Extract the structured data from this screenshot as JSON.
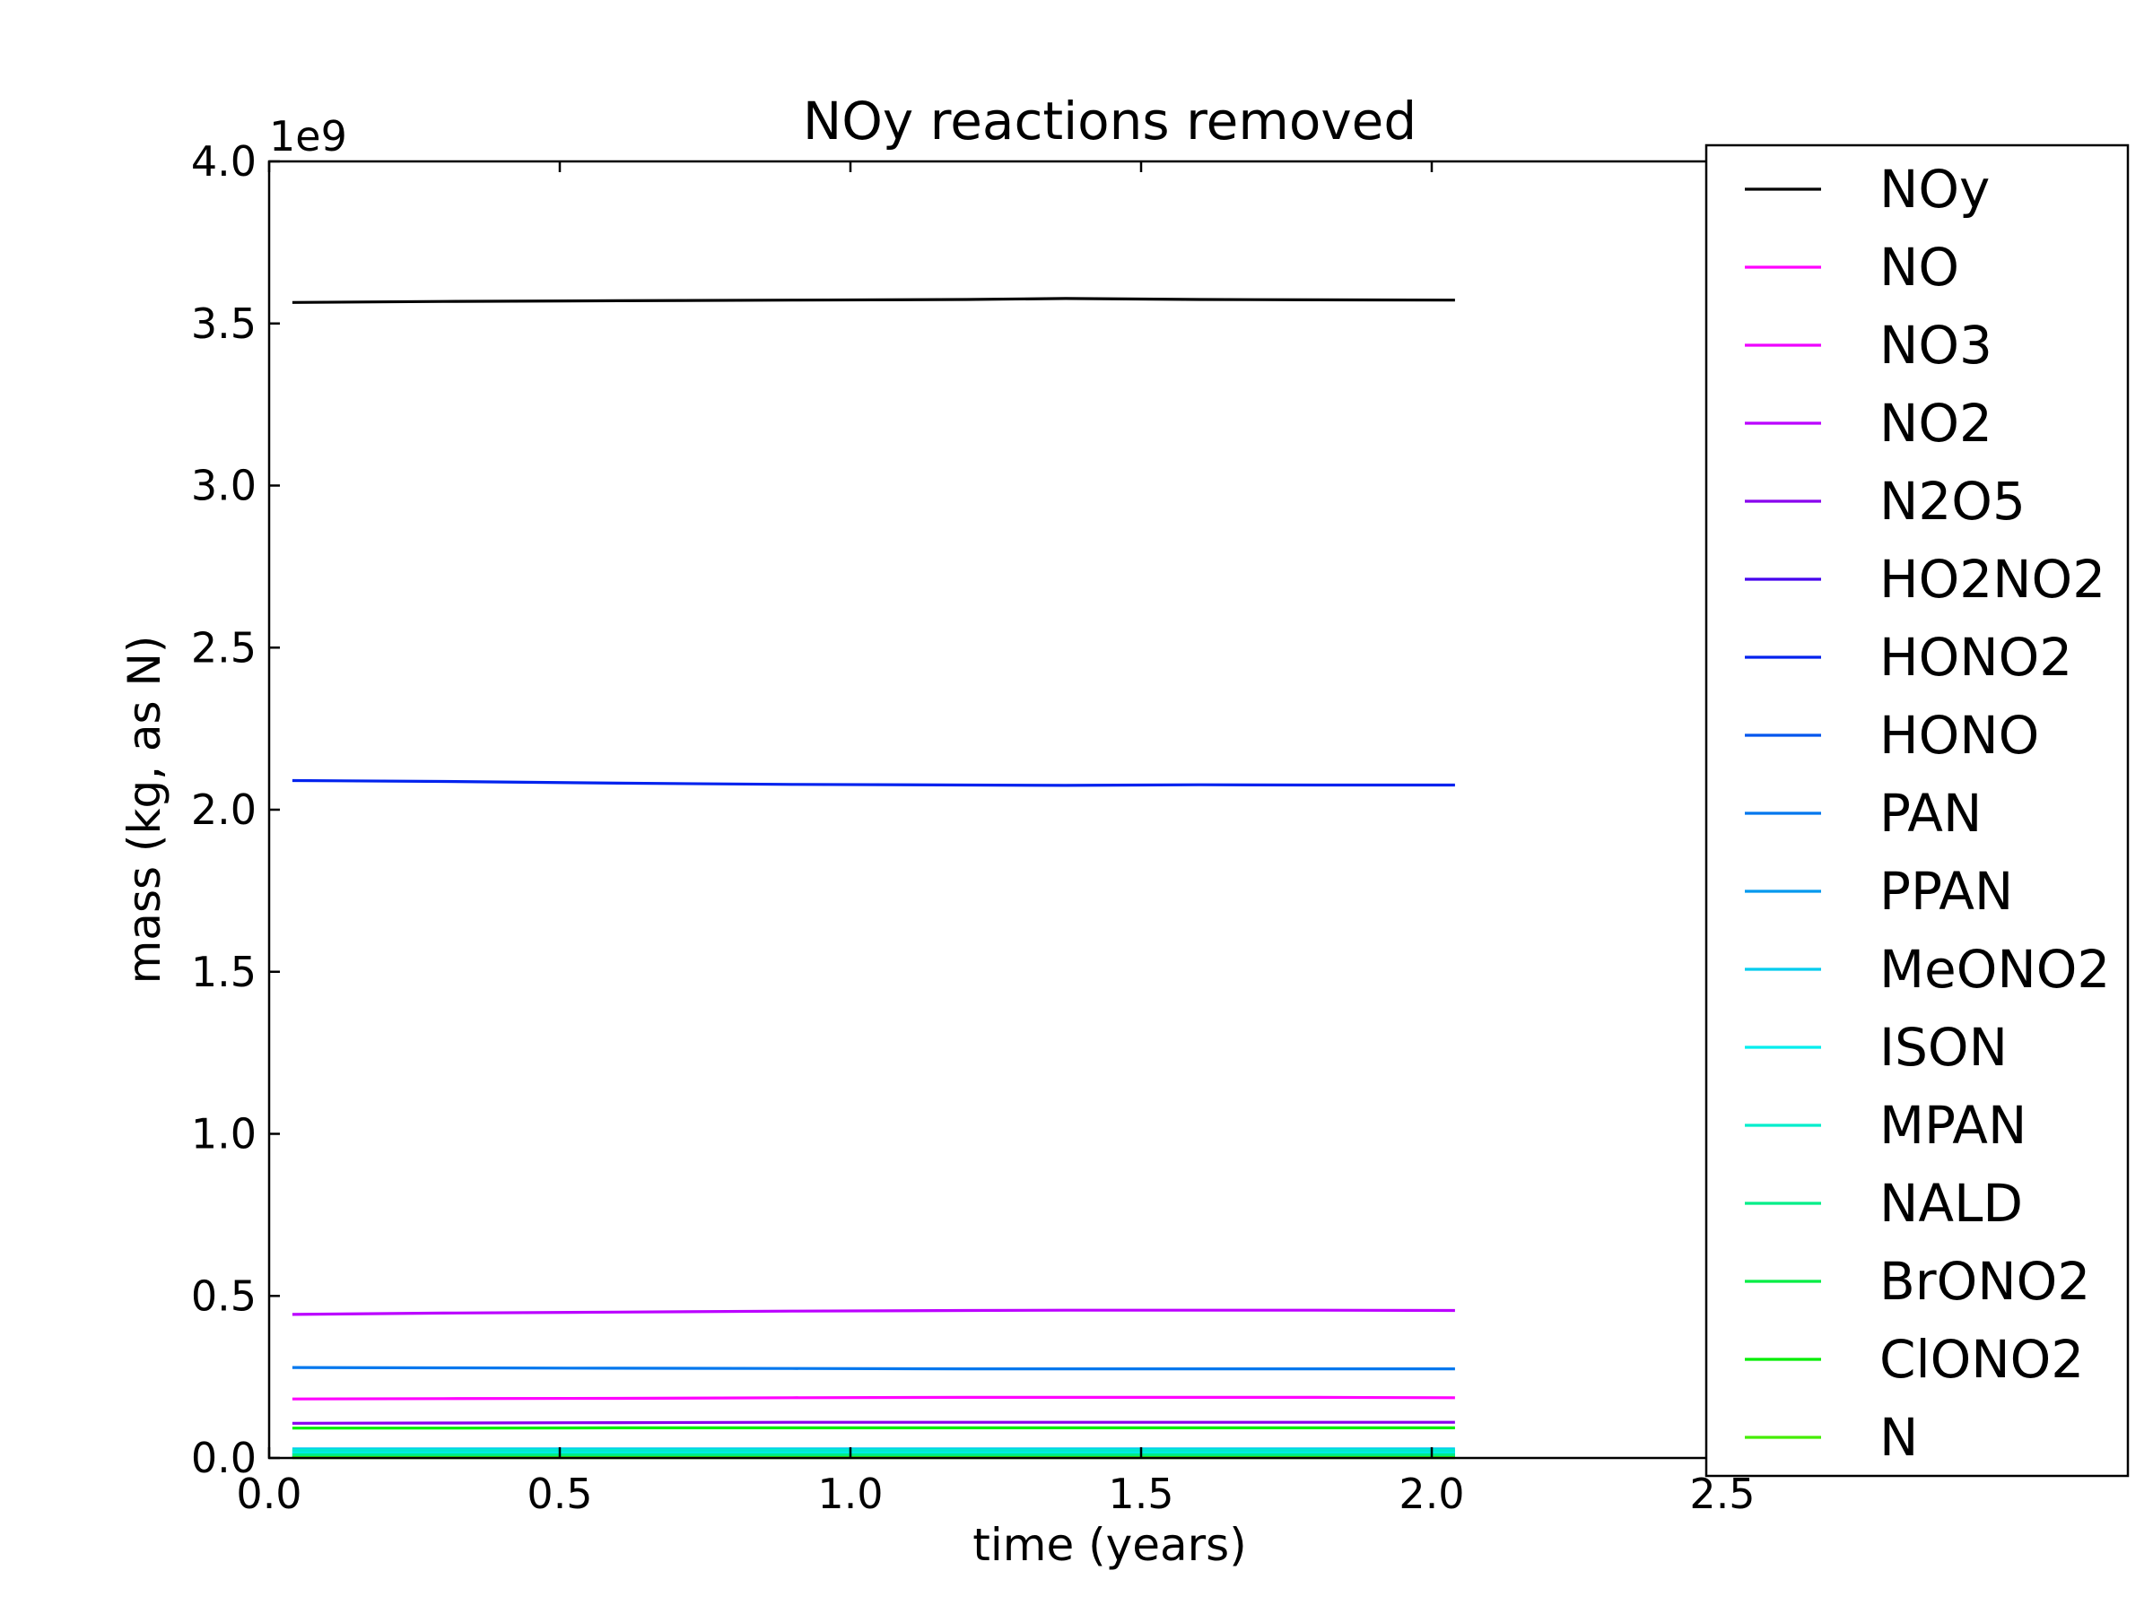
{
  "chart_data": {
    "type": "line",
    "title": "NOy reactions removed",
    "xlabel": "time (years)",
    "ylabel": "mass (kg, as N)",
    "y_scale_label": "1e9",
    "xlim": [
      0.0,
      2.5
    ],
    "ylim": [
      0.0,
      4.0
    ],
    "x_ticks": [
      "0.0",
      "0.5",
      "1.0",
      "1.5",
      "2.0",
      "2.5"
    ],
    "y_ticks": [
      "0.0",
      "0.5",
      "1.0",
      "1.5",
      "2.0",
      "2.5",
      "3.0",
      "3.5",
      "4.0"
    ],
    "grid": false,
    "legend_position": "right",
    "x": [
      0.04,
      0.3,
      0.6,
      0.9,
      1.2,
      1.37,
      1.6,
      1.8,
      2.04
    ],
    "series": [
      {
        "name": "NOy",
        "color": "#000000",
        "values": [
          3.565,
          3.568,
          3.57,
          3.572,
          3.574,
          3.577,
          3.574,
          3.573,
          3.572
        ]
      },
      {
        "name": "NO",
        "color": "#ff00ff",
        "values": [
          0.182,
          0.183,
          0.184,
          0.186,
          0.187,
          0.187,
          0.187,
          0.187,
          0.186
        ]
      },
      {
        "name": "NO3",
        "color": "#ee00ff",
        "values": [
          0.005,
          0.005,
          0.005,
          0.005,
          0.005,
          0.005,
          0.005,
          0.005,
          0.005
        ]
      },
      {
        "name": "NO2",
        "color": "#bb00ff",
        "values": [
          0.443,
          0.447,
          0.45,
          0.453,
          0.455,
          0.456,
          0.456,
          0.456,
          0.455
        ]
      },
      {
        "name": "N2O5",
        "color": "#8800ee",
        "values": [
          0.107,
          0.108,
          0.109,
          0.11,
          0.11,
          0.11,
          0.11,
          0.11,
          0.11
        ]
      },
      {
        "name": "HO2NO2",
        "color": "#4400ee",
        "values": [
          0.012,
          0.012,
          0.012,
          0.012,
          0.012,
          0.012,
          0.012,
          0.012,
          0.012
        ]
      },
      {
        "name": "HONO2",
        "color": "#0022ee",
        "values": [
          2.09,
          2.087,
          2.082,
          2.078,
          2.076,
          2.075,
          2.077,
          2.076,
          2.076
        ]
      },
      {
        "name": "HONO",
        "color": "#0055ee",
        "values": [
          0.004,
          0.004,
          0.004,
          0.004,
          0.004,
          0.004,
          0.004,
          0.004,
          0.004
        ]
      },
      {
        "name": "PAN",
        "color": "#0077ee",
        "values": [
          0.279,
          0.278,
          0.277,
          0.276,
          0.275,
          0.275,
          0.275,
          0.275,
          0.275
        ]
      },
      {
        "name": "PPAN",
        "color": "#0099ee",
        "values": [
          0.02,
          0.02,
          0.02,
          0.02,
          0.02,
          0.02,
          0.02,
          0.02,
          0.02
        ]
      },
      {
        "name": "MeONO2",
        "color": "#00ccee",
        "values": [
          0.028,
          0.028,
          0.028,
          0.028,
          0.028,
          0.028,
          0.028,
          0.028,
          0.028
        ]
      },
      {
        "name": "ISON",
        "color": "#00eeee",
        "values": [
          0.016,
          0.016,
          0.016,
          0.016,
          0.016,
          0.016,
          0.016,
          0.016,
          0.016
        ]
      },
      {
        "name": "MPAN",
        "color": "#00eecc",
        "values": [
          0.024,
          0.024,
          0.024,
          0.024,
          0.024,
          0.024,
          0.024,
          0.024,
          0.024
        ]
      },
      {
        "name": "NALD",
        "color": "#00ee88",
        "values": [
          0.01,
          0.01,
          0.01,
          0.01,
          0.01,
          0.01,
          0.01,
          0.01,
          0.01
        ]
      },
      {
        "name": "BrONO2",
        "color": "#00ee44",
        "values": [
          0.002,
          0.002,
          0.002,
          0.002,
          0.002,
          0.002,
          0.002,
          0.002,
          0.002
        ]
      },
      {
        "name": "ClONO2",
        "color": "#00ee00",
        "values": [
          0.092,
          0.092,
          0.093,
          0.093,
          0.093,
          0.093,
          0.093,
          0.093,
          0.093
        ]
      },
      {
        "name": "N",
        "color": "#44ee00",
        "values": [
          0.001,
          0.001,
          0.001,
          0.001,
          0.001,
          0.001,
          0.001,
          0.001,
          0.001
        ]
      }
    ]
  }
}
